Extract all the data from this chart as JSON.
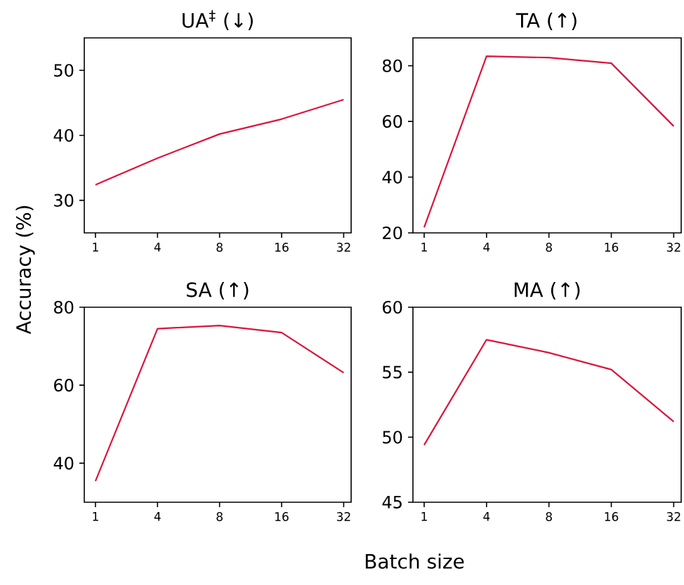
{
  "chart_data": [
    {
      "type": "line",
      "title": "UA$^{‡}$ (↓)",
      "ylabel": "Accuracy (%)",
      "categories": [
        "1",
        "4",
        "8",
        "16",
        "32"
      ],
      "values": [
        32.4,
        36.5,
        40.2,
        42.5,
        45.5
      ],
      "color": "#dc143c",
      "ylim": [
        25,
        55
      ],
      "yticks": [
        30,
        40,
        50
      ]
    },
    {
      "type": "line",
      "title": "TA (↑)",
      "categories": [
        "1",
        "4",
        "8",
        "16",
        "32"
      ],
      "values": [
        22,
        83.4,
        82.9,
        80.9,
        58.3
      ],
      "color": "#dc143c",
      "ylim": [
        20,
        90
      ],
      "yticks": [
        20,
        40,
        60,
        80
      ]
    },
    {
      "type": "line",
      "title": "SA (↑)",
      "xlabel": "Batch size",
      "categories": [
        "1",
        "4",
        "8",
        "16",
        "32"
      ],
      "values": [
        35.4,
        74.5,
        75.3,
        73.5,
        63.2
      ],
      "color": "#dc143c",
      "ylim": [
        30,
        80
      ],
      "yticks": [
        40,
        60,
        80
      ]
    },
    {
      "type": "line",
      "title": "MA (↑)",
      "categories": [
        "1",
        "4",
        "8",
        "16",
        "32"
      ],
      "values": [
        49.4,
        57.5,
        56.5,
        55.2,
        51.2
      ],
      "color": "#dc143c",
      "ylim": [
        45,
        60
      ],
      "yticks": [
        45,
        50,
        55,
        60
      ]
    }
  ]
}
